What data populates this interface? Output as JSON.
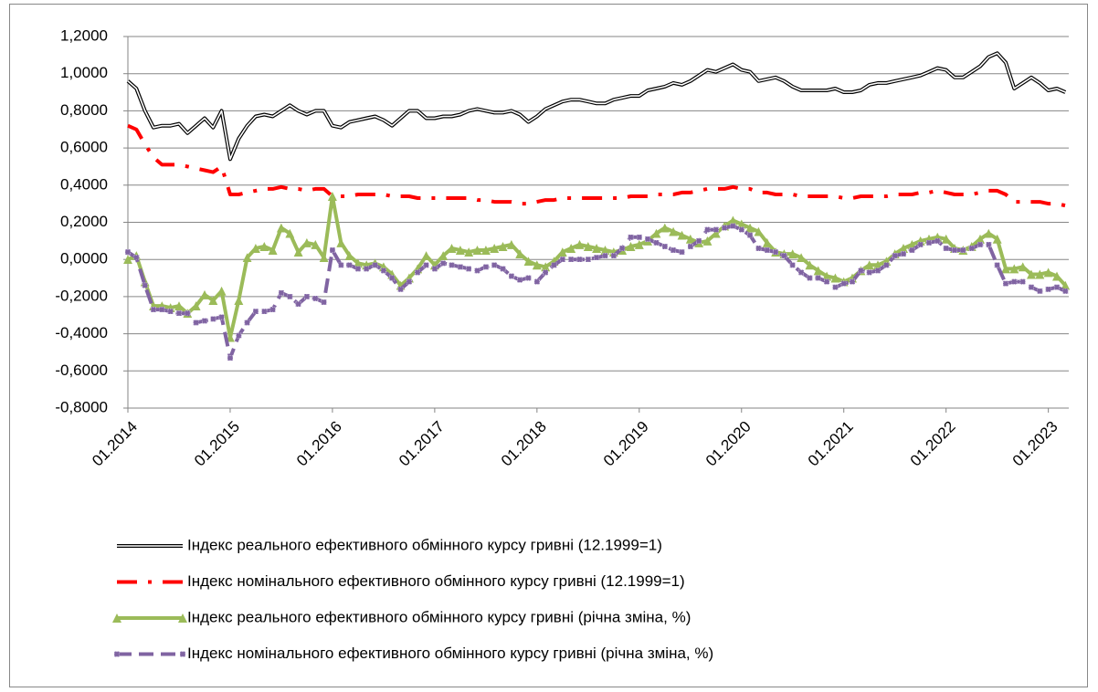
{
  "chart_data": {
    "type": "line",
    "categories": [
      "01.2014",
      null,
      null,
      null,
      null,
      null,
      null,
      null,
      null,
      null,
      null,
      null,
      "01.2015",
      null,
      null,
      null,
      null,
      null,
      null,
      null,
      null,
      null,
      null,
      null,
      "01.2016",
      null,
      null,
      null,
      null,
      null,
      null,
      null,
      null,
      null,
      null,
      null,
      "01.2017",
      null,
      null,
      null,
      null,
      null,
      null,
      null,
      null,
      null,
      null,
      null,
      "01.2018",
      null,
      null,
      null,
      null,
      null,
      null,
      null,
      null,
      null,
      null,
      null,
      "01.2019",
      null,
      null,
      null,
      null,
      null,
      null,
      null,
      null,
      null,
      null,
      null,
      "01.2020",
      null,
      null,
      null,
      null,
      null,
      null,
      null,
      null,
      null,
      null,
      null,
      "01.2021",
      null,
      null,
      null,
      null,
      null,
      null,
      null,
      null,
      null,
      null,
      null,
      "01.2022",
      null,
      null,
      null,
      null,
      null,
      null,
      null,
      null,
      null,
      null,
      null,
      "01.2023",
      null,
      null
    ],
    "series": [
      {
        "name": "Індекс реального ефективного обмінного курсу гривні (12.1999=1)",
        "color": "#000000",
        "values": [
          0.96,
          0.92,
          0.8,
          0.71,
          0.72,
          0.72,
          0.73,
          0.68,
          0.72,
          0.76,
          0.71,
          0.8,
          0.54,
          0.65,
          0.72,
          0.77,
          0.78,
          0.77,
          0.8,
          0.83,
          0.8,
          0.78,
          0.8,
          0.8,
          0.72,
          0.71,
          0.74,
          0.75,
          0.76,
          0.77,
          0.75,
          0.72,
          0.76,
          0.8,
          0.8,
          0.76,
          0.76,
          0.77,
          0.77,
          0.78,
          0.8,
          0.81,
          0.8,
          0.79,
          0.79,
          0.8,
          0.78,
          0.74,
          0.77,
          0.81,
          0.83,
          0.85,
          0.86,
          0.86,
          0.85,
          0.84,
          0.84,
          0.86,
          0.87,
          0.88,
          0.88,
          0.91,
          0.92,
          0.93,
          0.95,
          0.94,
          0.96,
          0.99,
          1.02,
          1.01,
          1.03,
          1.05,
          1.02,
          1.01,
          0.96,
          0.97,
          0.98,
          0.96,
          0.93,
          0.91,
          0.91,
          0.91,
          0.91,
          0.92,
          0.9,
          0.9,
          0.91,
          0.94,
          0.95,
          0.95,
          0.96,
          0.97,
          0.98,
          0.99,
          1.01,
          1.03,
          1.02,
          0.98,
          0.98,
          1.01,
          1.04,
          1.09,
          1.11,
          1.06,
          0.92,
          0.95,
          0.98,
          0.95,
          0.91,
          0.92,
          0.9
        ]
      },
      {
        "name": "Індекс номінального ефективного обмінного курсу гривні (12.1999=1)",
        "color": "#ff0000",
        "values": [
          0.72,
          0.7,
          0.62,
          0.55,
          0.51,
          0.51,
          0.51,
          0.5,
          0.49,
          0.48,
          0.47,
          0.5,
          0.35,
          0.35,
          0.36,
          0.37,
          0.38,
          0.38,
          0.39,
          0.38,
          0.38,
          0.37,
          0.38,
          0.38,
          0.34,
          0.34,
          0.34,
          0.35,
          0.35,
          0.35,
          0.35,
          0.34,
          0.34,
          0.34,
          0.33,
          0.33,
          0.33,
          0.33,
          0.33,
          0.33,
          0.33,
          0.32,
          0.32,
          0.31,
          0.31,
          0.31,
          0.3,
          0.3,
          0.31,
          0.32,
          0.32,
          0.33,
          0.33,
          0.33,
          0.33,
          0.33,
          0.33,
          0.33,
          0.33,
          0.34,
          0.34,
          0.34,
          0.35,
          0.35,
          0.35,
          0.36,
          0.36,
          0.37,
          0.38,
          0.38,
          0.38,
          0.39,
          0.38,
          0.38,
          0.36,
          0.36,
          0.35,
          0.35,
          0.35,
          0.34,
          0.34,
          0.34,
          0.34,
          0.34,
          0.33,
          0.33,
          0.34,
          0.34,
          0.34,
          0.34,
          0.35,
          0.35,
          0.35,
          0.36,
          0.36,
          0.37,
          0.36,
          0.35,
          0.35,
          0.35,
          0.36,
          0.37,
          0.37,
          0.35,
          0.31,
          0.31,
          0.31,
          0.31,
          0.3,
          0.3,
          0.29
        ]
      },
      {
        "name": "Індекс реального ефективного обмінного курсу гривні (річна зміна, %)",
        "color": "#9bbb59",
        "values": [
          0.0,
          0.02,
          -0.12,
          -0.25,
          -0.25,
          -0.26,
          -0.25,
          -0.29,
          -0.25,
          -0.19,
          -0.22,
          -0.17,
          -0.42,
          -0.22,
          0.01,
          0.06,
          0.07,
          0.05,
          0.17,
          0.14,
          0.04,
          0.09,
          0.08,
          0.01,
          0.34,
          0.09,
          0.02,
          -0.02,
          -0.03,
          -0.02,
          -0.04,
          -0.08,
          -0.14,
          -0.1,
          -0.05,
          0.02,
          -0.03,
          0.02,
          0.06,
          0.05,
          0.04,
          0.05,
          0.05,
          0.06,
          0.07,
          0.08,
          0.03,
          -0.01,
          -0.03,
          -0.04,
          -0.01,
          0.04,
          0.06,
          0.08,
          0.07,
          0.06,
          0.05,
          0.04,
          0.05,
          0.07,
          0.08,
          0.1,
          0.14,
          0.17,
          0.15,
          0.13,
          0.11,
          0.09,
          0.1,
          0.14,
          0.18,
          0.21,
          0.19,
          0.17,
          0.15,
          0.09,
          0.04,
          0.03,
          0.03,
          0.01,
          -0.03,
          -0.06,
          -0.09,
          -0.1,
          -0.12,
          -0.1,
          -0.06,
          -0.03,
          -0.03,
          -0.01,
          0.03,
          0.06,
          0.08,
          0.1,
          0.11,
          0.12,
          0.11,
          0.06,
          0.05,
          0.07,
          0.11,
          0.14,
          0.11,
          -0.05,
          -0.05,
          -0.04,
          -0.08,
          -0.08,
          -0.07,
          -0.09,
          -0.14
        ]
      },
      {
        "name": "Індекс номінального ефективного обмінного курсу гривні (річна зміна, %)",
        "color": "#8064a2",
        "values": [
          0.04,
          0.01,
          -0.14,
          -0.27,
          -0.27,
          -0.28,
          -0.29,
          -0.29,
          -0.34,
          -0.33,
          -0.32,
          -0.31,
          -0.53,
          -0.41,
          -0.34,
          -0.28,
          -0.28,
          -0.27,
          -0.18,
          -0.2,
          -0.24,
          -0.2,
          -0.21,
          -0.23,
          0.05,
          -0.03,
          -0.03,
          -0.05,
          -0.05,
          -0.03,
          -0.06,
          -0.1,
          -0.16,
          -0.12,
          -0.07,
          -0.03,
          -0.05,
          -0.02,
          -0.03,
          -0.04,
          -0.05,
          -0.06,
          -0.04,
          -0.03,
          -0.05,
          -0.09,
          -0.11,
          -0.1,
          -0.12,
          -0.07,
          -0.03,
          0.0,
          0.0,
          0.0,
          0.0,
          0.01,
          0.02,
          0.02,
          0.06,
          0.12,
          0.12,
          0.11,
          0.09,
          0.07,
          0.05,
          0.04,
          0.07,
          0.1,
          0.16,
          0.16,
          0.17,
          0.18,
          0.16,
          0.13,
          0.06,
          0.05,
          0.04,
          0.02,
          -0.03,
          -0.07,
          -0.1,
          -0.1,
          -0.12,
          -0.15,
          -0.13,
          -0.12,
          -0.06,
          -0.07,
          -0.06,
          -0.03,
          0.02,
          0.03,
          0.05,
          0.08,
          0.09,
          0.1,
          0.06,
          0.05,
          0.05,
          0.06,
          0.08,
          0.08,
          -0.03,
          -0.13,
          -0.12,
          -0.12,
          -0.15,
          -0.17,
          -0.16,
          -0.15,
          -0.17
        ]
      }
    ],
    "ylim": [
      -0.8,
      1.2
    ],
    "yticks": [
      {
        "value": -0.8,
        "label": "-0,8000"
      },
      {
        "value": -0.6,
        "label": "-0,6000"
      },
      {
        "value": -0.4,
        "label": "-0,4000"
      },
      {
        "value": -0.2,
        "label": "-0,2000"
      },
      {
        "value": 0,
        "label": "0,0000"
      },
      {
        "value": 0.2,
        "label": "0,2000"
      },
      {
        "value": 0.4,
        "label": "0,4000"
      },
      {
        "value": 0.6,
        "label": "0,6000"
      },
      {
        "value": 0.8,
        "label": "0,8000"
      },
      {
        "value": 1.0,
        "label": "1,0000"
      },
      {
        "value": 1.2,
        "label": "1,2000"
      }
    ],
    "grid": true
  }
}
